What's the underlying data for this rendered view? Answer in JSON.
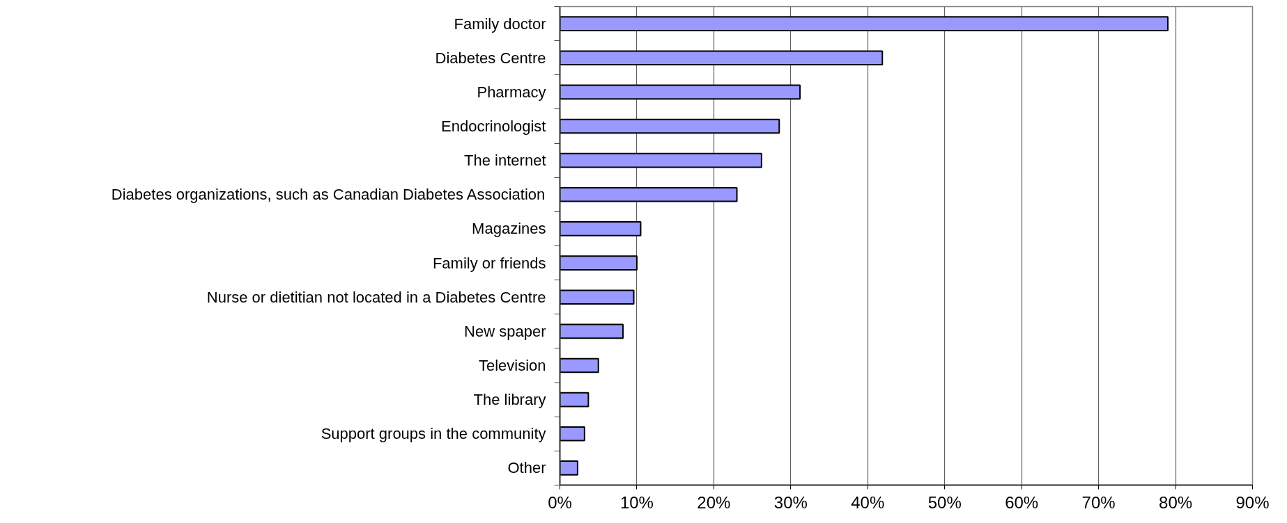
{
  "chart_data": {
    "type": "bar",
    "orientation": "horizontal",
    "categories": [
      "Family doctor",
      "Diabetes Centre",
      "Pharmacy",
      "Endocrinologist",
      "The internet",
      "Diabetes organizations, such as Canadian Diabetes Association",
      "Magazines",
      "Family or friends",
      "Nurse or dietitian not located in a Diabetes Centre",
      "New spaper",
      "Television",
      "The library",
      "Support groups in the community",
      "Other"
    ],
    "values": [
      79,
      41.9,
      31.2,
      28.5,
      26.2,
      23.0,
      10.5,
      10.0,
      9.6,
      8.2,
      5.0,
      3.7,
      3.2,
      2.3
    ],
    "color": "#9999ff",
    "xlim": [
      0,
      90
    ],
    "xticks": [
      {
        "value": 0,
        "label": "0%"
      },
      {
        "value": 10,
        "label": "10%"
      },
      {
        "value": 20,
        "label": "20%"
      },
      {
        "value": 30,
        "label": "30%"
      },
      {
        "value": 40,
        "label": "40%"
      },
      {
        "value": 50,
        "label": "50%"
      },
      {
        "value": 60,
        "label": "60%"
      },
      {
        "value": 70,
        "label": "70%"
      },
      {
        "value": 80,
        "label": "80%"
      },
      {
        "value": 90,
        "label": "90%"
      }
    ],
    "grid": "x"
  }
}
